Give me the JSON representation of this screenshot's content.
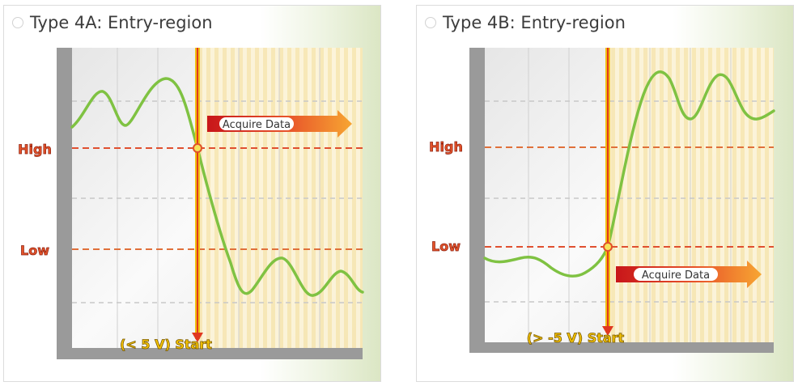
{
  "panels": [
    {
      "title": "Type 4A: Entry-region",
      "high_label": "High",
      "low_label": "Low",
      "acquire_label": "Acquire Data",
      "start_label": "(< 5 V) Start"
    },
    {
      "title": "Type 4B: Entry-region",
      "high_label": "High",
      "low_label": "Low",
      "acquire_label": "Acquire Data",
      "start_label": "(> -5 V) Start"
    }
  ],
  "colors": {
    "signal": "#7fc242",
    "trigger_line": "#f0c010",
    "threshold": "#e05030",
    "arrow": "#d0251f",
    "frame": "#9a9a9a",
    "label_fill": "#e4532a",
    "start_fill": "#f6c400"
  }
}
